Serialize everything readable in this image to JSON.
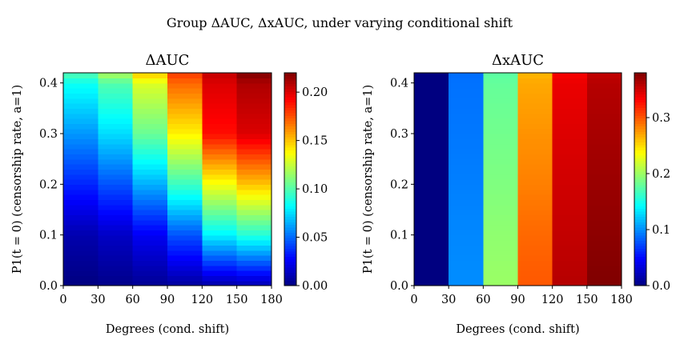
{
  "figure": {
    "title": "Group ΔAUC, ΔxAUC, under varying conditional shift"
  },
  "chart_data": [
    {
      "type": "heatmap",
      "title": "ΔAUC",
      "xlabel": "Degrees (cond. shift)",
      "ylabel": "P1(t = 0) (censorship rate, a=1)",
      "x_ticks": [
        "0",
        "30",
        "60",
        "90",
        "120",
        "150",
        "180"
      ],
      "y_ticks": [
        "0.0",
        "0.1",
        "0.2",
        "0.3",
        "0.4"
      ],
      "colorbar_ticks": [
        "0.00",
        "0.05",
        "0.10",
        "0.15",
        "0.20"
      ],
      "x_range": [
        0,
        180
      ],
      "y_range": [
        0,
        0.42
      ],
      "colorbar_range": [
        0,
        0.22
      ],
      "colormap": "jet",
      "x_bins": [
        0,
        30,
        60,
        90,
        120,
        150,
        180
      ],
      "y_samples": [
        0.0,
        0.1,
        0.2,
        0.3,
        0.4,
        0.42
      ],
      "z": [
        [
          0.0,
          0.002,
          0.004,
          0.006,
          0.008,
          0.01
        ],
        [
          0.01,
          0.015,
          0.025,
          0.045,
          0.08,
          0.09
        ],
        [
          0.035,
          0.045,
          0.065,
          0.095,
          0.135,
          0.15
        ],
        [
          0.06,
          0.075,
          0.105,
          0.14,
          0.19,
          0.2
        ],
        [
          0.085,
          0.1,
          0.13,
          0.17,
          0.2,
          0.21
        ],
        [
          0.1,
          0.12,
          0.15,
          0.18,
          0.205,
          0.22
        ]
      ]
    },
    {
      "type": "heatmap",
      "title": "ΔxAUC",
      "xlabel": "Degrees (cond. shift)",
      "ylabel": "P1(t = 0) (censorship rate, a=1)",
      "x_ticks": [
        "0",
        "30",
        "60",
        "90",
        "120",
        "150",
        "180"
      ],
      "y_ticks": [
        "0.0",
        "0.1",
        "0.2",
        "0.3",
        "0.4"
      ],
      "colorbar_ticks": [
        "0.0",
        "0.1",
        "0.2",
        "0.3"
      ],
      "x_range": [
        0,
        180
      ],
      "y_range": [
        0,
        0.42
      ],
      "colorbar_range": [
        0,
        0.38
      ],
      "colormap": "jet",
      "x_bins": [
        0,
        30,
        60,
        90,
        120,
        150,
        180
      ],
      "y_samples": [
        0.0,
        0.1,
        0.2,
        0.3,
        0.4,
        0.42
      ],
      "z": [
        [
          0.0,
          0.1,
          0.2,
          0.3,
          0.36,
          0.38
        ],
        [
          0.0,
          0.098,
          0.196,
          0.294,
          0.355,
          0.375
        ],
        [
          0.0,
          0.095,
          0.19,
          0.285,
          0.35,
          0.37
        ],
        [
          0.0,
          0.092,
          0.185,
          0.278,
          0.345,
          0.365
        ],
        [
          0.0,
          0.09,
          0.18,
          0.27,
          0.34,
          0.36
        ],
        [
          0.0,
          0.088,
          0.176,
          0.265,
          0.335,
          0.355
        ]
      ]
    }
  ]
}
